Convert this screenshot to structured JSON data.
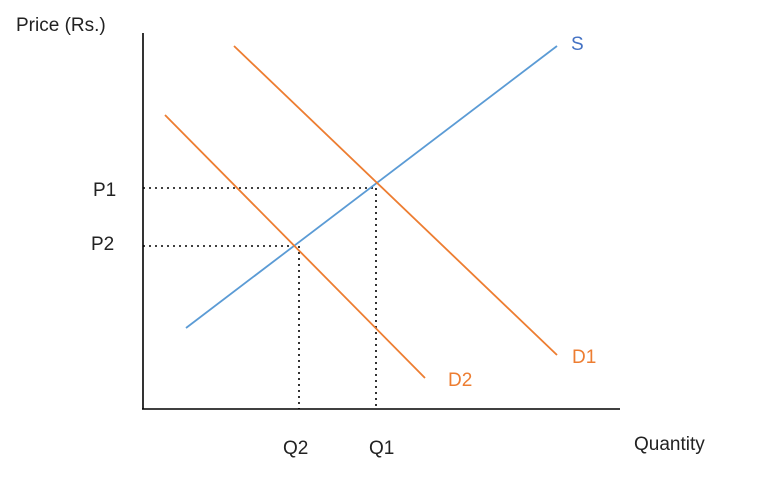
{
  "diagram": {
    "y_axis_label": "Price (Rs.)",
    "x_axis_label": "Quantity",
    "supply_label": "S",
    "demand_labels": [
      "D1",
      "D2"
    ],
    "price_labels": [
      "P1",
      "P2"
    ],
    "quantity_labels": [
      "Q2",
      "Q1"
    ],
    "colors": {
      "supply": "#5b9bd5",
      "demand": "#ed7d31",
      "axis": "#000000",
      "guides": "#000000"
    }
  }
}
